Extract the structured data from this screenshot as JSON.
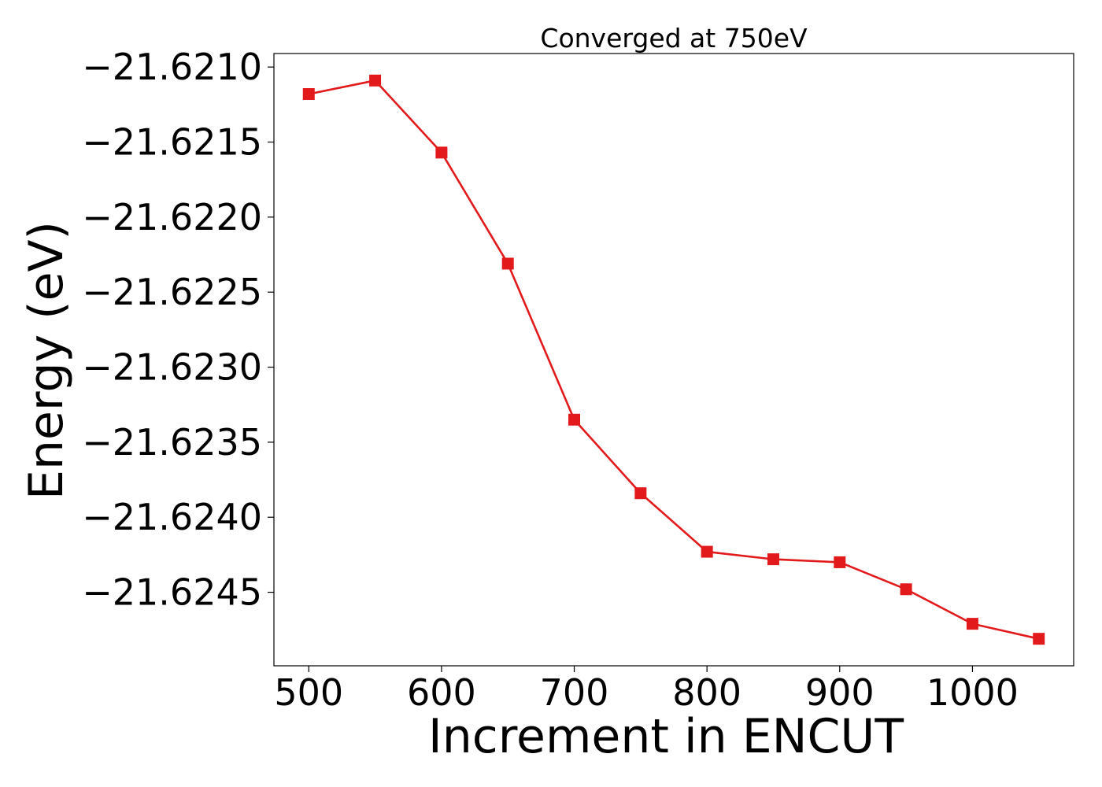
{
  "chart_data": {
    "type": "line",
    "title": "Converged at 750eV",
    "xlabel": "Increment in ENCUT",
    "ylabel": "Energy (eV)",
    "x": [
      500,
      550,
      600,
      650,
      700,
      750,
      800,
      850,
      900,
      950,
      1000,
      1050
    ],
    "series": [
      {
        "values": [
          -21.62118,
          -21.62109,
          -21.62157,
          -21.62231,
          -21.62335,
          -21.62384,
          -21.62423,
          -21.62428,
          -21.6243,
          -21.62448,
          -21.62471,
          -21.62481
        ],
        "color": "#e31a1c",
        "marker": "square"
      }
    ],
    "xticks": [
      500,
      600,
      700,
      800,
      900,
      1000
    ],
    "xtick_labels": [
      "500",
      "600",
      "700",
      "800",
      "900",
      "1000"
    ],
    "yticks": [
      -21.621,
      -21.6215,
      -21.622,
      -21.6225,
      -21.623,
      -21.6235,
      -21.624,
      -21.6245
    ],
    "ytick_labels": [
      "−21.6210",
      "−21.6215",
      "−21.6220",
      "−21.6225",
      "−21.6230",
      "−21.6235",
      "−21.6240",
      "−21.6245"
    ],
    "xlim": [
      473.75,
      1076.25
    ],
    "ylim": [
      -21.62499,
      -21.62091
    ],
    "grid": false,
    "legend": "none"
  }
}
